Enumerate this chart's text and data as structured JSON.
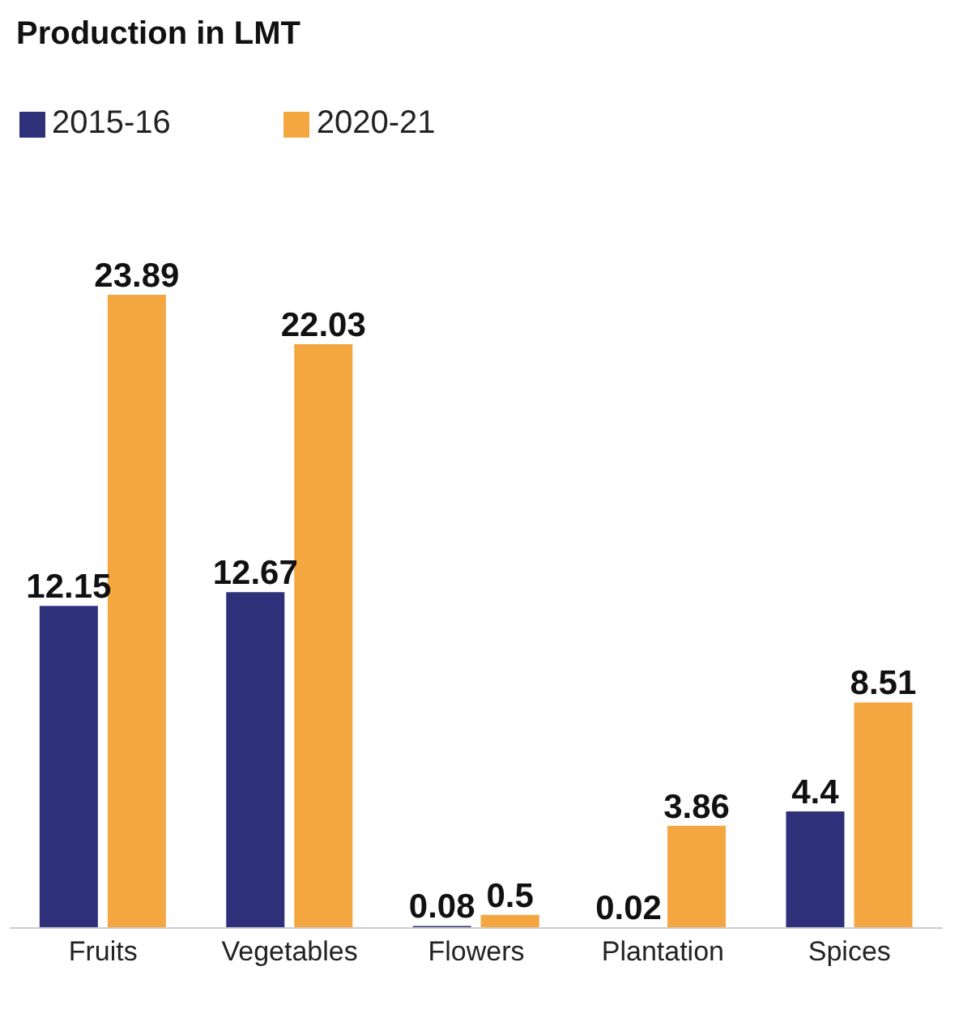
{
  "chart_data": {
    "type": "bar",
    "title": "Production in LMT",
    "categories": [
      "Fruits",
      "Vegetables",
      "Flowers",
      "Plantation",
      "Spices"
    ],
    "series": [
      {
        "name": "2015-16",
        "color": "#2e3179",
        "values": [
          12.15,
          12.67,
          0.08,
          0.02,
          4.4
        ]
      },
      {
        "name": "2020-21",
        "color": "#f4a641",
        "values": [
          23.89,
          22.03,
          0.5,
          3.86,
          8.51
        ]
      }
    ],
    "legend": "top left",
    "data_labels": true,
    "tick_labels": "x"
  }
}
